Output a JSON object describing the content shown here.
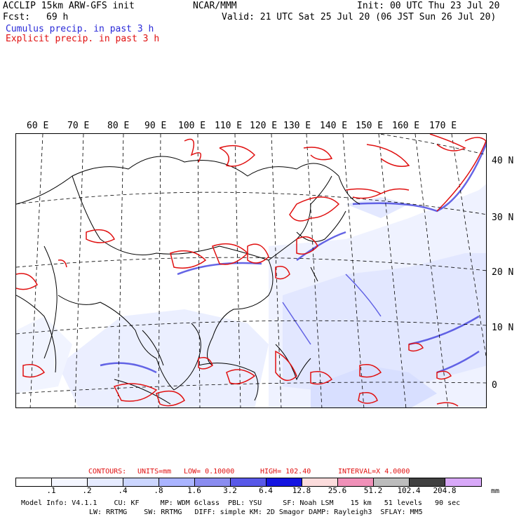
{
  "header": {
    "title": "ACCLIP 15km ARW-GFS init",
    "fcst_label": "Fcst:",
    "fcst_value": "69 h",
    "center": "NCAR/MMM",
    "init": "Init: 00 UTC Thu 23 Jul 20",
    "valid": "Valid: 21 UTC Sat 25 Jul 20 (06 JST Sun 26 Jul 20)",
    "cumulus_label": "Cumulus precip. in past 3 h",
    "explicit_label": "Explicit precip. in past 3 h"
  },
  "map": {
    "lon_labels": [
      "60 E",
      "70 E",
      "80 E",
      "90 E",
      "100 E",
      "110 E",
      "120 E",
      "130 E",
      "140 E",
      "150 E",
      "160 E",
      "170 E"
    ],
    "lat_labels": [
      "40 N",
      "30 N",
      "20 N",
      "10 N",
      "0"
    ]
  },
  "contours": {
    "label": "CONTOURS:",
    "units": "UNITS=mm",
    "low": "LOW= 0.10000",
    "high": "HIGH= 102.40",
    "interval": "INTERVAL=X 4.0000"
  },
  "legend": {
    "unit": "mm",
    "ticks": [
      ".1",
      ".2",
      ".4",
      ".8",
      "1.6",
      "3.2",
      "6.4",
      "12.8",
      "25.6",
      "51.2",
      "102.4",
      "204.8"
    ],
    "colors": [
      "#ffffff",
      "#f4f6ff",
      "#e6ebff",
      "#ccd6ff",
      "#aab4ff",
      "#8a8cf0",
      "#5858e8",
      "#1414e0",
      "#fcdcdc",
      "#f090b8",
      "#bcbcbc",
      "#404040",
      "#d8a8f8"
    ]
  },
  "footer": {
    "line1": "Model Info: V4.1.1    CU: KF     MP: WDM 6class  PBL: YSU     SF: Noah LSM    15 km   51 levels   90 sec",
    "line2": "LW: RRTMG    SW: RRTMG   DIFF: simple KM: 2D Smagor DAMP: Rayleigh3  SFLAY: MM5"
  }
}
